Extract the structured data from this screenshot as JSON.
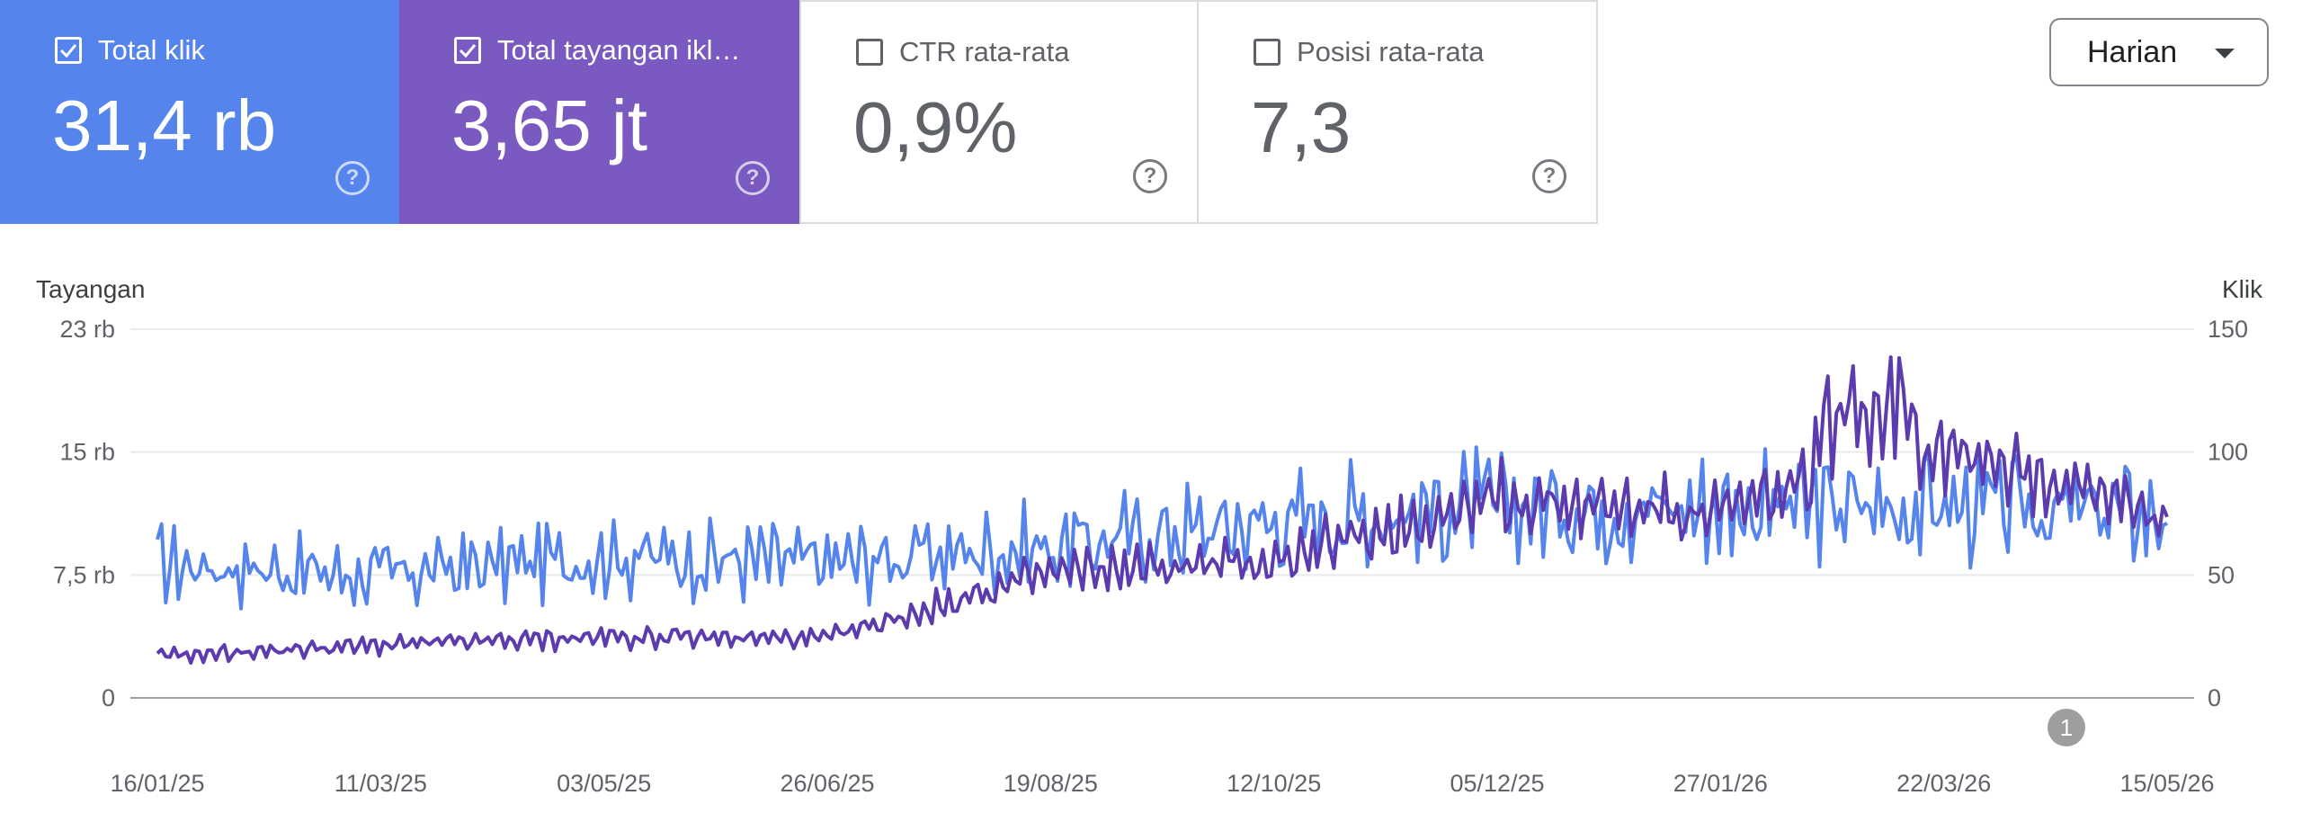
{
  "cards": [
    {
      "label": "Total klik",
      "value": "31,4 rb",
      "checked": true,
      "color": "#5484ec"
    },
    {
      "label": "Total tayangan ikl…",
      "value": "3,65 jt",
      "checked": true,
      "color": "#7a59c0"
    },
    {
      "label": "CTR rata-rata",
      "value": "0,9%",
      "checked": false
    },
    {
      "label": "Posisi rata-rata",
      "value": "7,3",
      "checked": false
    }
  ],
  "granularity": "Harian",
  "chart_data": {
    "type": "line",
    "left_axis": {
      "title": "Tayangan",
      "ticks": [
        "0",
        "7,5 rb",
        "15 rb",
        "23 rb"
      ],
      "range": [
        0,
        23000
      ]
    },
    "right_axis": {
      "title": "Klik",
      "ticks": [
        "0",
        "50",
        "100",
        "150"
      ],
      "range": [
        0,
        150
      ]
    },
    "x_ticks": [
      "16/01/25",
      "11/03/25",
      "03/05/25",
      "26/06/25",
      "19/08/25",
      "12/10/25",
      "05/12/25",
      "27/01/26",
      "22/03/26",
      "15/05/26"
    ],
    "annotation": "1",
    "grid": true,
    "series": [
      {
        "color": "#5484ec",
        "axis": "right",
        "anchors": [
          [
            "16/01/25",
            55
          ],
          [
            "11/03/25",
            50
          ],
          [
            "03/05/25",
            58
          ],
          [
            "26/06/25",
            55
          ],
          [
            "19/08/25",
            62
          ],
          [
            "12/10/25",
            72
          ],
          [
            "05/12/25",
            78
          ],
          [
            "27/01/26",
            78
          ],
          [
            "22/03/26",
            78
          ],
          [
            "15/05/26",
            75
          ]
        ]
      },
      {
        "color": "#5b3bae",
        "axis": "left",
        "anchors": [
          [
            "16/01/25",
            2600
          ],
          [
            "11/03/25",
            3300
          ],
          [
            "03/05/25",
            3800
          ],
          [
            "26/06/25",
            3700
          ],
          [
            "19/08/25",
            7800
          ],
          [
            "12/10/25",
            8500
          ],
          [
            "05/12/25",
            12400
          ],
          [
            "27/01/26",
            11500
          ],
          [
            "22/03/26",
            16000
          ],
          [
            "15/05/26",
            11000
          ]
        ]
      }
    ]
  }
}
